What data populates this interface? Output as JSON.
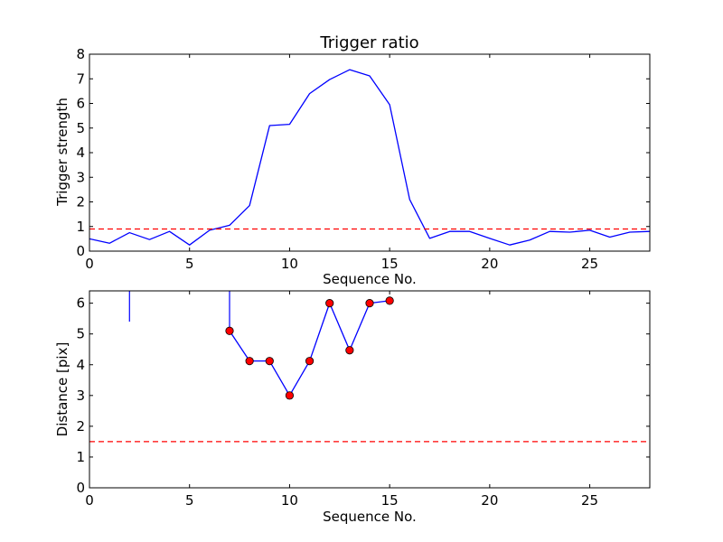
{
  "chart_data": [
    {
      "type": "line",
      "title": "Trigger ratio",
      "xlabel": "Sequence No.",
      "ylabel": "Trigger strength",
      "xlim": [
        0,
        28
      ],
      "ylim": [
        0,
        8
      ],
      "xticks": [
        0,
        5,
        10,
        15,
        20,
        25
      ],
      "yticks": [
        0,
        1,
        2,
        3,
        4,
        5,
        6,
        7,
        8
      ],
      "grid": false,
      "series": [
        {
          "color": "#0000ff",
          "style": "solid",
          "x": [
            0,
            1,
            2,
            3,
            4,
            5,
            6,
            7,
            8,
            9,
            10,
            11,
            12,
            13,
            14,
            15,
            16,
            17,
            18,
            19,
            20,
            21,
            22,
            23,
            24,
            25,
            26,
            27,
            28
          ],
          "y": [
            0.5,
            0.32,
            0.75,
            0.47,
            0.8,
            0.25,
            0.85,
            1.05,
            1.85,
            5.1,
            5.15,
            6.4,
            6.97,
            7.37,
            7.12,
            5.95,
            2.1,
            0.52,
            0.8,
            0.8,
            0.52,
            0.25,
            0.45,
            0.8,
            0.77,
            0.85,
            0.57,
            0.77,
            0.8
          ]
        },
        {
          "color": "#ff0000",
          "style": "dashed",
          "x": [
            0,
            28
          ],
          "y": [
            0.9,
            0.9
          ]
        }
      ]
    },
    {
      "type": "line",
      "title": "",
      "xlabel": "Sequence No.",
      "ylabel": "Distance [pix]",
      "xlim": [
        0,
        28
      ],
      "ylim": [
        0,
        6.4
      ],
      "xticks": [
        0,
        5,
        10,
        15,
        20,
        25
      ],
      "yticks": [
        0,
        1,
        2,
        3,
        4,
        5,
        6
      ],
      "grid": false,
      "clipped_segments": [
        {
          "color": "#0000ff",
          "x": [
            2,
            2
          ],
          "y": [
            5.4,
            6.4
          ]
        },
        {
          "color": "#0000ff",
          "x": [
            7,
            7
          ],
          "y": [
            5.1,
            6.4
          ]
        }
      ],
      "series": [
        {
          "color": "#0000ff",
          "marker_color": "#ff0000",
          "markers": true,
          "style": "solid",
          "x": [
            7,
            8,
            9,
            10,
            11,
            12,
            13,
            14,
            15
          ],
          "y": [
            5.1,
            4.12,
            4.12,
            3.0,
            4.12,
            6.0,
            4.47,
            6.0,
            6.08
          ]
        },
        {
          "color": "#ff0000",
          "style": "dashed",
          "x": [
            0,
            28
          ],
          "y": [
            1.5,
            1.5
          ]
        }
      ]
    }
  ]
}
